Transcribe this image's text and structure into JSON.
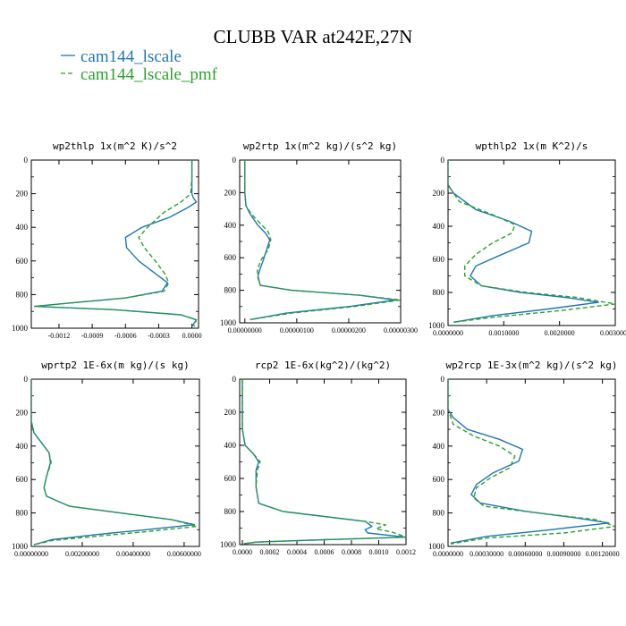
{
  "figure": {
    "title": "CLUBB VAR at242E,27N",
    "legend": [
      {
        "label": "cam144_lscale",
        "color": "#1f77b4",
        "dash": "solid"
      },
      {
        "label": "cam144_lscale_pmf",
        "color": "#2ca02c",
        "dash": "dashed"
      }
    ]
  },
  "chart_data": [
    {
      "type": "line",
      "title": "wp2thlp  1x(m^2 K)/s^2",
      "xlim": [
        -0.00145,
        6e-05
      ],
      "ylim": [
        1000,
        0
      ],
      "xticks": [
        -0.0012,
        -0.0009,
        -0.0006,
        -0.0003,
        0.0
      ],
      "xtick_labels": [
        "-0.0012",
        "-0.0009",
        "-0.0006",
        "-0.0003",
        "0.0000"
      ],
      "yticks": [
        0,
        200,
        400,
        600,
        800,
        1000
      ],
      "series": [
        {
          "name": "cam144_lscale",
          "x": [
            0.0,
            0.0,
            0.0,
            1e-05,
            4e-05,
            -3e-05,
            -0.0002,
            -0.00045,
            -0.0006,
            -0.00059,
            -0.00048,
            -0.00032,
            -0.00022,
            -0.00027,
            -0.0006,
            -0.0011,
            -0.00142,
            -0.0007,
            -0.0001,
            4e-05,
            0.0
          ],
          "y": [
            0,
            100,
            200,
            220,
            250,
            280,
            340,
            400,
            460,
            520,
            600,
            680,
            730,
            780,
            820,
            850,
            870,
            890,
            920,
            950,
            990
          ]
        },
        {
          "name": "cam144_lscale_pmf",
          "x": [
            0.0,
            0.0,
            -1e-05,
            -0.0001,
            -0.00025,
            -0.0004,
            -0.00048,
            -0.00043,
            -0.00033,
            -0.00024,
            -0.00021,
            -0.00025,
            -0.0006,
            -0.0011,
            -0.00142,
            -0.0007,
            -0.0001,
            4e-05,
            2e-05
          ],
          "y": [
            0,
            100,
            200,
            250,
            310,
            400,
            460,
            520,
            600,
            680,
            730,
            780,
            820,
            850,
            870,
            890,
            920,
            950,
            990
          ]
        }
      ]
    },
    {
      "type": "line",
      "title": "wp2rtp  1x(m^2 kg)/(s^2 kg)",
      "xlim": [
        -1e-07,
        3e-06
      ],
      "ylim": [
        1000,
        0
      ],
      "xticks": [
        0.0,
        1e-06,
        2e-06,
        3e-06
      ],
      "xtick_labels": [
        "0.00000000",
        "0.00000100",
        "0.00000200",
        "0.00000300"
      ],
      "yticks": [
        0,
        200,
        400,
        600,
        800,
        1000
      ],
      "series": [
        {
          "name": "cam144_lscale",
          "x": [
            0.0,
            0.0,
            2e-08,
            1e-07,
            2.5e-07,
            4e-07,
            4.8e-07,
            4.2e-07,
            3.5e-07,
            2.8e-07,
            2.5e-07,
            3e-07,
            9e-07,
            2.2e-06,
            2.9e-06,
            2e-06,
            8e-07,
            1e-07
          ],
          "y": [
            0,
            200,
            280,
            330,
            400,
            450,
            490,
            550,
            620,
            680,
            720,
            770,
            800,
            830,
            860,
            900,
            940,
            980
          ]
        },
        {
          "name": "cam144_lscale_pmf",
          "x": [
            0.0,
            0.0,
            2e-08,
            1.2e-07,
            3e-07,
            4.5e-07,
            5e-07,
            4.5e-07,
            3e-07,
            2.4e-07,
            2.6e-07,
            3e-07,
            9e-07,
            2.2e-06,
            3e-06,
            2.1e-06,
            9e-07,
            1e-07
          ],
          "y": [
            0,
            200,
            280,
            330,
            390,
            440,
            490,
            550,
            620,
            680,
            720,
            770,
            800,
            830,
            860,
            900,
            940,
            980
          ]
        }
      ]
    },
    {
      "type": "line",
      "title": "wpthlp2  1x(m K^2)/s",
      "xlim": [
        -2e-07,
        0.003
      ],
      "ylim": [
        1000,
        0
      ],
      "xticks": [
        0.0,
        0.001,
        0.002,
        0.003
      ],
      "xtick_labels": [
        "0.0000000",
        "0.0010000",
        "0.0020000",
        "0.0030000"
      ],
      "yticks": [
        0,
        200,
        400,
        600,
        800,
        1000
      ],
      "series": [
        {
          "name": "cam144_lscale",
          "x": [
            0.0,
            0.0,
            0.0001,
            0.0005,
            0.0011,
            0.0015,
            0.00145,
            0.0009,
            0.0005,
            0.0004,
            0.0006,
            0.0013,
            0.0021,
            0.0027,
            0.0018,
            0.0008,
            0.0001
          ],
          "y": [
            0,
            150,
            200,
            300,
            370,
            430,
            500,
            580,
            640,
            700,
            760,
            800,
            830,
            860,
            900,
            940,
            980
          ]
        },
        {
          "name": "cam144_lscale_pmf",
          "x": [
            0.0,
            0.0,
            0.0002,
            0.0008,
            0.0012,
            0.00115,
            0.0008,
            0.0005,
            0.0003,
            0.0003,
            0.0006,
            0.0014,
            0.0023,
            0.003,
            0.002,
            0.0008,
            0.0001
          ],
          "y": [
            0,
            150,
            250,
            330,
            390,
            440,
            500,
            570,
            640,
            700,
            760,
            800,
            830,
            870,
            910,
            950,
            980
          ]
        }
      ]
    },
    {
      "type": "line",
      "title": "wprtp2  1E-6x(m kg)/(s kg)",
      "xlim": [
        -1e-07,
        0.0066
      ],
      "ylim": [
        1000,
        0
      ],
      "xticks": [
        0.0,
        0.002,
        0.004,
        0.006
      ],
      "xtick_labels": [
        "0.00000000",
        "0.00200000",
        "0.00400000",
        "0.00600000"
      ],
      "yticks": [
        0,
        200,
        400,
        600,
        800,
        1000
      ],
      "series": [
        {
          "name": "cam144_lscale",
          "x": [
            0.0,
            0.0,
            0.0001,
            0.0004,
            0.0007,
            0.00075,
            0.0006,
            0.0005,
            0.0006,
            0.0015,
            0.0035,
            0.0055,
            0.0064,
            0.0045,
            0.0025,
            0.0008,
            0.0001
          ],
          "y": [
            0,
            250,
            320,
            380,
            440,
            500,
            580,
            650,
            700,
            760,
            800,
            840,
            870,
            900,
            930,
            960,
            990
          ]
        },
        {
          "name": "cam144_lscale_pmf",
          "x": [
            0.0,
            0.0,
            0.0001,
            0.0004,
            0.0007,
            0.00078,
            0.0006,
            0.0005,
            0.0006,
            0.0015,
            0.0035,
            0.0055,
            0.0065,
            0.0046,
            0.0025,
            0.0008,
            0.0001
          ],
          "y": [
            0,
            250,
            320,
            380,
            440,
            500,
            580,
            650,
            700,
            760,
            800,
            840,
            880,
            910,
            940,
            965,
            990
          ]
        }
      ]
    },
    {
      "type": "line",
      "title": "rcp2  1E-6x(kg^2)/(kg^2)",
      "xlim": [
        -2e-05,
        0.0012
      ],
      "ylim": [
        1000,
        0
      ],
      "xticks": [
        0.0,
        0.0002,
        0.0004,
        0.0006,
        0.0008,
        0.001,
        0.0012
      ],
      "xtick_labels": [
        "0.0000",
        "0.0002",
        "0.0004",
        "0.0006",
        "0.0008",
        "0.0010",
        "0.0012"
      ],
      "yticks": [
        0,
        200,
        400,
        600,
        800,
        1000
      ],
      "series": [
        {
          "name": "cam144_lscale",
          "x": [
            0.0,
            0.0,
            2e-05,
            8e-05,
            0.00012,
            0.0001,
            0.0001,
            0.00012,
            0.0003,
            0.0006,
            0.0009,
            0.00095,
            0.0009,
            0.00092,
            0.0012,
            0.0006,
            0.0001,
            1e-05
          ],
          "y": [
            0,
            300,
            400,
            450,
            500,
            550,
            650,
            750,
            800,
            830,
            860,
            890,
            910,
            930,
            955,
            970,
            985,
            995
          ]
        },
        {
          "name": "cam144_lscale_pmf",
          "x": [
            0.0,
            0.0,
            2e-05,
            8e-05,
            0.00013,
            0.00011,
            0.0001,
            0.00012,
            0.0003,
            0.0006,
            0.0009,
            0.00105,
            0.00098,
            0.0011,
            0.0012,
            0.0006,
            0.0001,
            1e-05
          ],
          "y": [
            0,
            300,
            400,
            450,
            500,
            550,
            650,
            750,
            800,
            830,
            860,
            880,
            905,
            925,
            955,
            970,
            985,
            995
          ]
        }
      ]
    },
    {
      "type": "line",
      "title": "wp2rcp  1E-3x(m^2 kg)/(s^2 kg)",
      "xlim": [
        -1e-07,
        0.0013
      ],
      "ylim": [
        1000,
        0
      ],
      "xticks": [
        0.0,
        0.0003,
        0.0006,
        0.0009,
        0.0012
      ],
      "xtick_labels": [
        "0.0000000",
        "0.00030000",
        "0.00060000",
        "0.00090000",
        "0.00120000"
      ],
      "yticks": [
        0,
        200,
        400,
        600,
        800,
        1000
      ],
      "series": [
        {
          "name": "cam144_lscale",
          "x": [
            0.0,
            0.0,
            4e-05,
            0.00015,
            0.0004,
            0.00058,
            0.00055,
            0.00035,
            0.00022,
            0.00018,
            0.00025,
            0.0006,
            0.001,
            0.00125,
            0.0008,
            0.0003,
            2e-05
          ],
          "y": [
            0,
            180,
            230,
            300,
            360,
            420,
            490,
            560,
            630,
            690,
            740,
            790,
            830,
            860,
            900,
            940,
            980
          ]
        },
        {
          "name": "cam144_lscale_pmf",
          "x": [
            0.0,
            0.0,
            4e-05,
            0.0002,
            0.0004,
            0.00052,
            0.00048,
            0.00033,
            0.00022,
            0.0002,
            0.00028,
            0.0007,
            0.00115,
            0.0013,
            0.0009,
            0.0003,
            2e-05
          ],
          "y": [
            0,
            180,
            270,
            340,
            400,
            460,
            530,
            590,
            650,
            710,
            760,
            800,
            840,
            880,
            920,
            950,
            985
          ]
        }
      ]
    }
  ]
}
